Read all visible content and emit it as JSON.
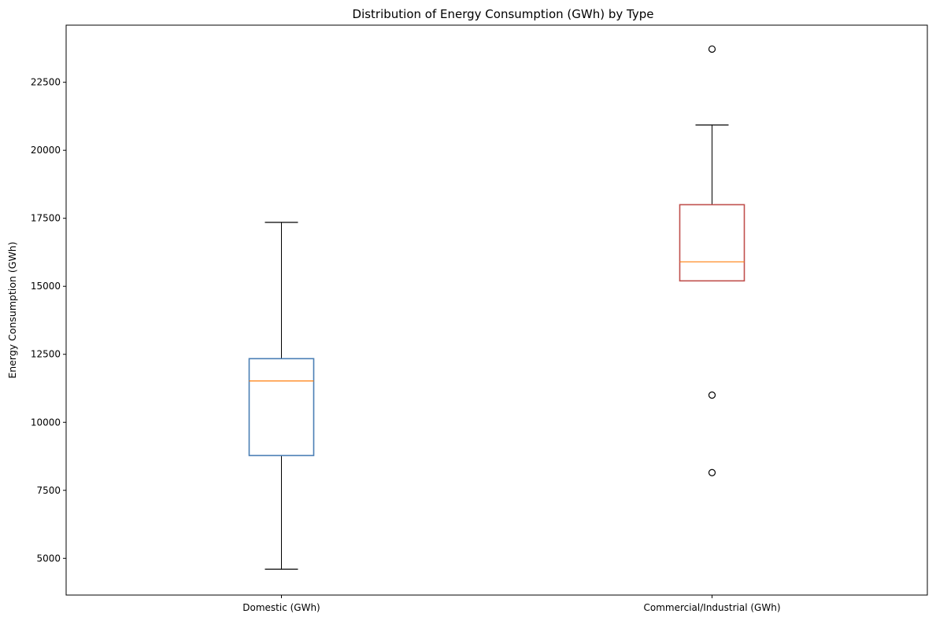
{
  "chart_data": {
    "type": "box",
    "title": "Distribution of Energy Consumption (GWh) by Type",
    "xlabel": "",
    "ylabel": "Energy Consumption (GWh)",
    "ylim": [
      3650,
      24600
    ],
    "yticks": [
      5000,
      7500,
      10000,
      12500,
      15000,
      17500,
      20000,
      22500
    ],
    "grid": false,
    "categories": [
      "Domestic (GWh)",
      "Commercial/Industrial (GWh)"
    ],
    "boxes": [
      {
        "category": "Domestic (GWh)",
        "whisker_low": 4600,
        "q1": 8780,
        "median": 11520,
        "q3": 12340,
        "whisker_high": 17350,
        "outliers": [],
        "color": "#4a7fb5"
      },
      {
        "category": "Commercial/Industrial (GWh)",
        "whisker_low": 15200,
        "q1": 15200,
        "median": 15900,
        "q3": 18000,
        "whisker_high": 20930,
        "outliers": [
          23720,
          11000,
          8150
        ],
        "color": "#c0504d"
      }
    ],
    "median_color": "#ff7f0e"
  }
}
